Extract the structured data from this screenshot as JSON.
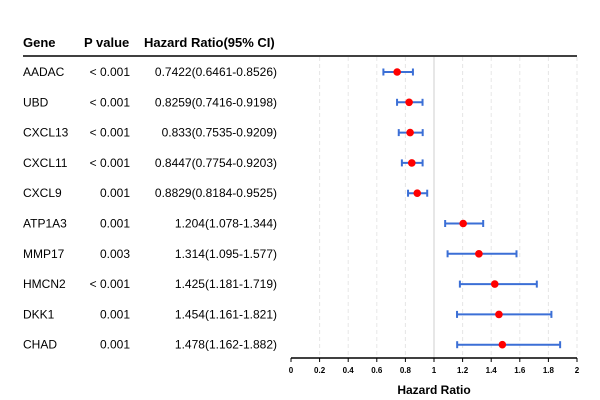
{
  "headers": {
    "gene": "Gene",
    "pvalue": "P value",
    "hr": "Hazard Ratio(95% CI)"
  },
  "chart_data": {
    "type": "forest",
    "xlabel": "Hazard Ratio",
    "xlim": [
      0,
      2
    ],
    "xticks": [
      "0",
      "0.2",
      "0.4",
      "0.6",
      "0.8",
      "1",
      "1.2",
      "1.4",
      "1.6",
      "1.8",
      "2"
    ],
    "reference_line": 1,
    "point_color": "#ff0000",
    "ci_color": "#3b6fd6",
    "rows": [
      {
        "gene": "AADAC",
        "pvalue": "< 0.001",
        "hr_text": "0.7422(0.6461-0.8526)",
        "hr": 0.7422,
        "lower": 0.6461,
        "upper": 0.8526
      },
      {
        "gene": "UBD",
        "pvalue": "< 0.001",
        "hr_text": "0.8259(0.7416-0.9198)",
        "hr": 0.8259,
        "lower": 0.7416,
        "upper": 0.9198
      },
      {
        "gene": "CXCL13",
        "pvalue": "< 0.001",
        "hr_text": "0.833(0.7535-0.9209)",
        "hr": 0.833,
        "lower": 0.7535,
        "upper": 0.9209
      },
      {
        "gene": "CXCL11",
        "pvalue": "< 0.001",
        "hr_text": "0.8447(0.7754-0.9203)",
        "hr": 0.8447,
        "lower": 0.7754,
        "upper": 0.9203
      },
      {
        "gene": "CXCL9",
        "pvalue": "0.001",
        "hr_text": "0.8829(0.8184-0.9525)",
        "hr": 0.8829,
        "lower": 0.8184,
        "upper": 0.9525
      },
      {
        "gene": "ATP1A3",
        "pvalue": "0.001",
        "hr_text": "1.204(1.078-1.344)",
        "hr": 1.204,
        "lower": 1.078,
        "upper": 1.344
      },
      {
        "gene": "MMP17",
        "pvalue": "0.003",
        "hr_text": "1.314(1.095-1.577)",
        "hr": 1.314,
        "lower": 1.095,
        "upper": 1.577
      },
      {
        "gene": "HMCN2",
        "pvalue": "< 0.001",
        "hr_text": "1.425(1.181-1.719)",
        "hr": 1.425,
        "lower": 1.181,
        "upper": 1.719
      },
      {
        "gene": "DKK1",
        "pvalue": "0.001",
        "hr_text": "1.454(1.161-1.821)",
        "hr": 1.454,
        "lower": 1.161,
        "upper": 1.821
      },
      {
        "gene": "CHAD",
        "pvalue": "0.001",
        "hr_text": "1.478(1.162-1.882)",
        "hr": 1.478,
        "lower": 1.162,
        "upper": 1.882
      }
    ]
  }
}
